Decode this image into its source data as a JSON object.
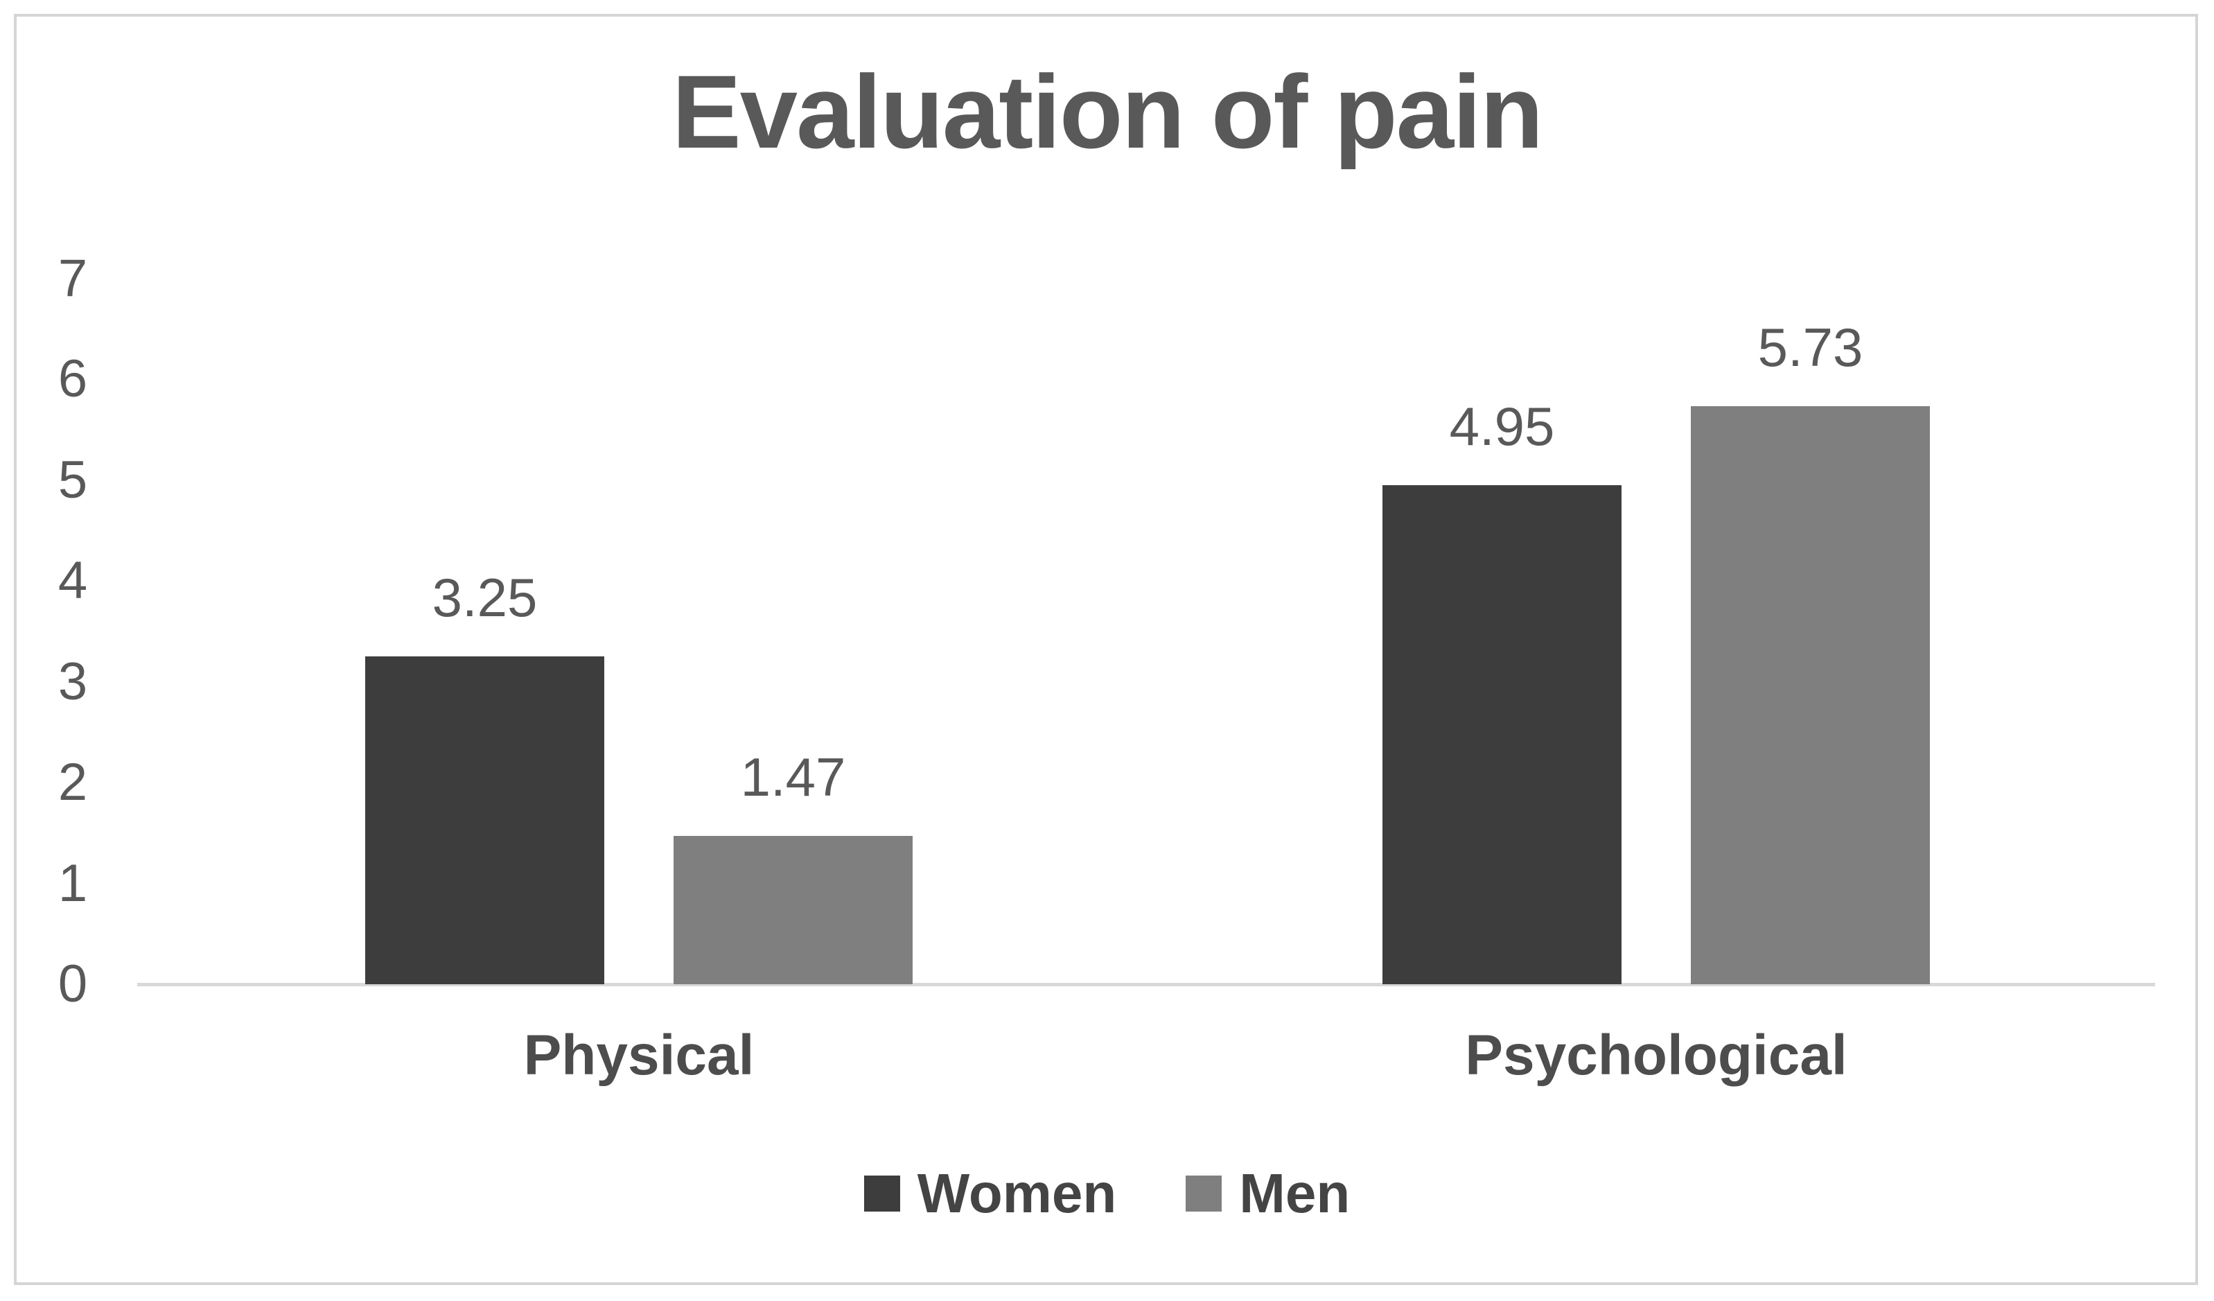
{
  "chart_data": {
    "type": "bar",
    "title": "Evaluation of pain",
    "categories": [
      "Physical",
      "Psychological"
    ],
    "series": [
      {
        "name": "Women",
        "color": "#3d3d3d",
        "values": [
          3.25,
          4.95
        ],
        "labels": [
          "3.25",
          "4.95"
        ]
      },
      {
        "name": "Men",
        "color": "#7f7f7f",
        "values": [
          1.47,
          5.73
        ],
        "labels": [
          "1.47",
          "5.73"
        ]
      }
    ],
    "ylim": [
      0,
      7
    ],
    "yticks": [
      "0",
      "1",
      "2",
      "3",
      "4",
      "5",
      "6",
      "7"
    ],
    "grid": false,
    "legend_position": "bottom",
    "colors": {
      "title_text": "#595959",
      "axis_tick_text": "#595959",
      "data_label_text": "#595959",
      "category_text": "#4d4d4d",
      "axis_line": "#d9d9d9",
      "frame_border": "#d5d5d5",
      "background": "#ffffff"
    }
  }
}
